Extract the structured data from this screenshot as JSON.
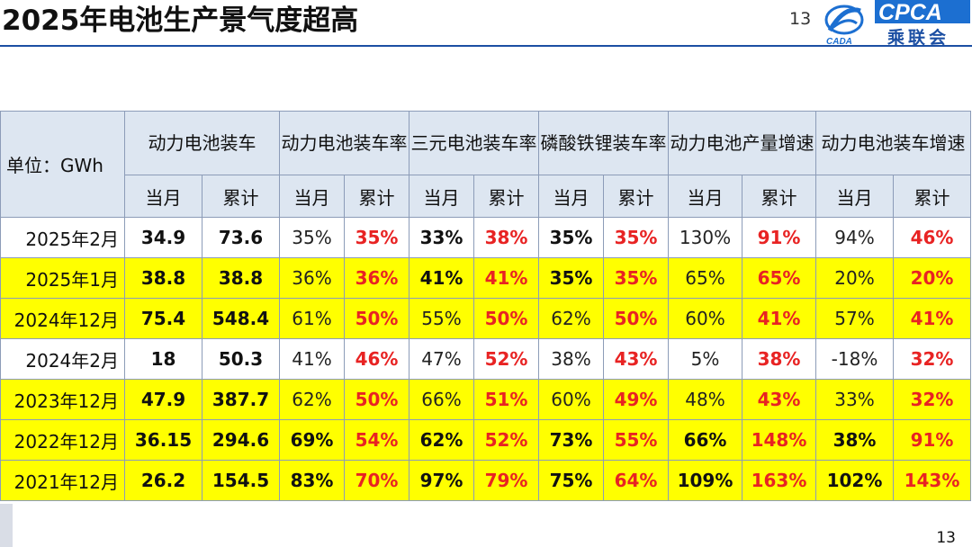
{
  "page": {
    "title": "2025年电池生产景气度超高",
    "page_number_top": "13",
    "page_number_bottom": "13",
    "logo_text": "CPCA",
    "logo_subtext": "乘联会",
    "logo_badge": "CADA"
  },
  "table": {
    "unit_label": "单位：GWh",
    "groups": [
      {
        "label": "动力电池装车",
        "sub": [
          "当月",
          "累计"
        ]
      },
      {
        "label": "动力电池装车率",
        "sub": [
          "当月",
          "累计"
        ]
      },
      {
        "label": "三元电池装车率",
        "sub": [
          "当月",
          "累计"
        ]
      },
      {
        "label": "磷酸铁锂装车率",
        "sub": [
          "当月",
          "累计"
        ]
      },
      {
        "label": "动力电池产量增速",
        "sub": [
          "当月",
          "累计"
        ]
      },
      {
        "label": "动力电池装车增速",
        "sub": [
          "当月",
          "累计"
        ]
      }
    ],
    "rows": [
      {
        "label": "2025年2月",
        "highlight": false,
        "values": [
          "34.9",
          "73.6",
          "35%",
          "35%",
          "33%",
          "38%",
          "35%",
          "35%",
          "130%",
          "91%",
          "94%",
          "46%"
        ],
        "bold_current": false,
        "bold_rate_current": true
      },
      {
        "label": "2025年1月",
        "highlight": true,
        "values": [
          "38.8",
          "38.8",
          "36%",
          "36%",
          "41%",
          "41%",
          "35%",
          "35%",
          "65%",
          "65%",
          "20%",
          "20%"
        ],
        "bold_current": false,
        "bold_rate_current": true
      },
      {
        "label": "2024年12月",
        "highlight": true,
        "values": [
          "75.4",
          "548.4",
          "61%",
          "50%",
          "55%",
          "50%",
          "62%",
          "50%",
          "60%",
          "41%",
          "57%",
          "41%"
        ],
        "bold_current": false,
        "bold_rate_current": false
      },
      {
        "label": "2024年2月",
        "highlight": false,
        "values": [
          "18",
          "50.3",
          "41%",
          "46%",
          "47%",
          "52%",
          "38%",
          "43%",
          "5%",
          "38%",
          "-18%",
          "32%"
        ],
        "bold_current": false,
        "bold_rate_current": false
      },
      {
        "label": "2023年12月",
        "highlight": true,
        "values": [
          "47.9",
          "387.7",
          "62%",
          "50%",
          "66%",
          "51%",
          "60%",
          "49%",
          "48%",
          "43%",
          "33%",
          "32%"
        ],
        "bold_current": false,
        "bold_rate_current": false
      },
      {
        "label": "2022年12月",
        "highlight": true,
        "values": [
          "36.15",
          "294.6",
          "69%",
          "54%",
          "62%",
          "52%",
          "73%",
          "55%",
          "66%",
          "148%",
          "38%",
          "91%"
        ],
        "bold_current": true,
        "bold_rate_current": true
      },
      {
        "label": "2021年12月",
        "highlight": true,
        "values": [
          "26.2",
          "154.5",
          "83%",
          "70%",
          "97%",
          "79%",
          "75%",
          "64%",
          "109%",
          "163%",
          "102%",
          "143%"
        ],
        "bold_current": true,
        "bold_rate_current": true
      }
    ]
  },
  "colors": {
    "header_bg": "#dde6f1",
    "highlight": "#ffff00",
    "red_text": "#e82323",
    "accent": "#1c4fa3"
  }
}
